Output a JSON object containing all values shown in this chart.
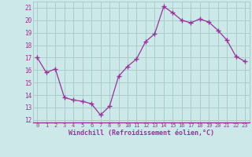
{
  "x": [
    0,
    1,
    2,
    3,
    4,
    5,
    6,
    7,
    8,
    9,
    10,
    11,
    12,
    13,
    14,
    15,
    16,
    17,
    18,
    19,
    20,
    21,
    22,
    23
  ],
  "y": [
    17.0,
    15.8,
    16.1,
    13.8,
    13.6,
    13.5,
    13.3,
    12.4,
    13.1,
    15.5,
    16.3,
    16.9,
    18.3,
    18.9,
    21.1,
    20.6,
    20.0,
    19.8,
    20.1,
    19.85,
    19.2,
    18.4,
    17.1,
    16.7
  ],
  "line_color": "#993399",
  "marker": "+",
  "marker_size": 4,
  "bg_color": "#cce8e8",
  "grid_color": "#aacccc",
  "xlabel": "Windchill (Refroidissement éolien,°C)",
  "ylabel_ticks": [
    12,
    13,
    14,
    15,
    16,
    17,
    18,
    19,
    20,
    21
  ],
  "xlim": [
    -0.5,
    23.5
  ],
  "ylim": [
    11.8,
    21.5
  ],
  "tick_color": "#993399",
  "label_color": "#993399"
}
